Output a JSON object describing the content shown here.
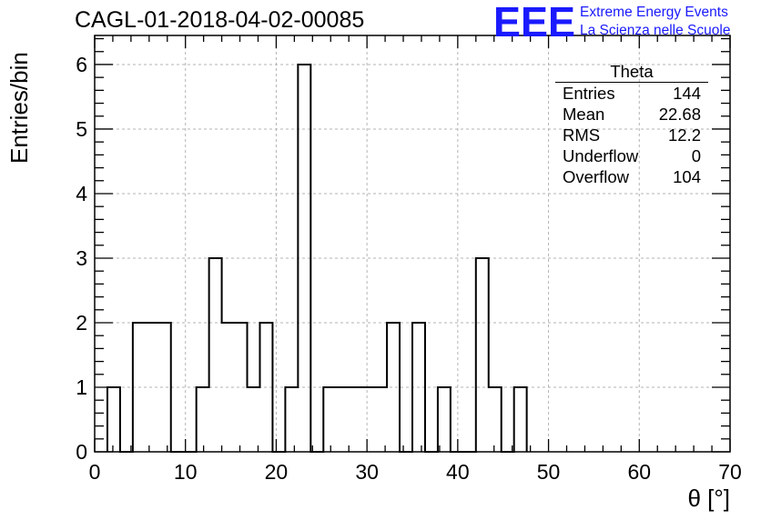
{
  "header": {
    "title": "CAGL-01-2018-04-02-00085",
    "logo_mark": "EEE",
    "logo_line1": "Extreme Energy Events",
    "logo_line2": "La Scienza nelle Scuole"
  },
  "stats_box": {
    "name": "Theta",
    "rows": [
      {
        "label": "Entries",
        "value": "144"
      },
      {
        "label": "Mean",
        "value": "22.68"
      },
      {
        "label": "RMS",
        "value": "12.2"
      },
      {
        "label": "Underflow",
        "value": "0"
      },
      {
        "label": "Overflow",
        "value": "104"
      }
    ]
  },
  "chart_data": {
    "type": "bar",
    "title": "CAGL-01-2018-04-02-00085",
    "xlabel": "θ [°]",
    "ylabel": "Entries/bin",
    "xlim": [
      0,
      70
    ],
    "ylim": [
      0,
      6.45
    ],
    "grid": true,
    "xticks": [
      0,
      10,
      20,
      30,
      40,
      50,
      60,
      70
    ],
    "yticks": [
      0,
      1,
      2,
      3,
      4,
      5,
      6
    ],
    "bin_width": 1.4,
    "bins": [
      {
        "x0": 1.4,
        "value": 1
      },
      {
        "x0": 2.8,
        "value": 0
      },
      {
        "x0": 4.2,
        "value": 2
      },
      {
        "x0": 5.6,
        "value": 2
      },
      {
        "x0": 7.0,
        "value": 2
      },
      {
        "x0": 8.4,
        "value": 0
      },
      {
        "x0": 9.8,
        "value": 0
      },
      {
        "x0": 11.2,
        "value": 1
      },
      {
        "x0": 12.6,
        "value": 3
      },
      {
        "x0": 14.0,
        "value": 2
      },
      {
        "x0": 15.4,
        "value": 2
      },
      {
        "x0": 16.8,
        "value": 1
      },
      {
        "x0": 18.2,
        "value": 2
      },
      {
        "x0": 19.6,
        "value": 0
      },
      {
        "x0": 21.0,
        "value": 1
      },
      {
        "x0": 22.4,
        "value": 6
      },
      {
        "x0": 23.8,
        "value": 0
      },
      {
        "x0": 25.2,
        "value": 1
      },
      {
        "x0": 26.6,
        "value": 1
      },
      {
        "x0": 28.0,
        "value": 1
      },
      {
        "x0": 29.4,
        "value": 1
      },
      {
        "x0": 30.8,
        "value": 1
      },
      {
        "x0": 32.2,
        "value": 2
      },
      {
        "x0": 33.6,
        "value": 0
      },
      {
        "x0": 35.0,
        "value": 2
      },
      {
        "x0": 36.4,
        "value": 0
      },
      {
        "x0": 37.8,
        "value": 1
      },
      {
        "x0": 39.2,
        "value": 0
      },
      {
        "x0": 40.6,
        "value": 0
      },
      {
        "x0": 42.0,
        "value": 3
      },
      {
        "x0": 43.4,
        "value": 1
      },
      {
        "x0": 44.8,
        "value": 0
      },
      {
        "x0": 46.2,
        "value": 1
      }
    ],
    "colors": {
      "line": "#000000",
      "grid": "#b3b3b3",
      "logo": "#1a1aff"
    }
  }
}
